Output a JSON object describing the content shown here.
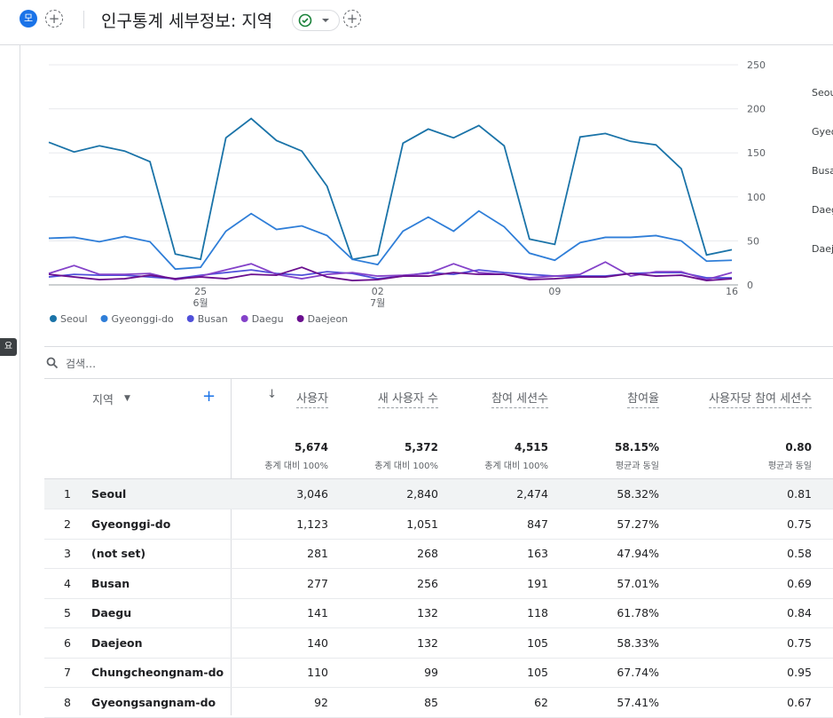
{
  "header": {
    "avatar": "모",
    "title": "인구통계 세부정보: 지역"
  },
  "side_badge": "요",
  "chart_data": {
    "type": "line",
    "categories": [
      null,
      null,
      null,
      null,
      null,
      null,
      "25",
      null,
      null,
      null,
      null,
      null,
      null,
      "02",
      null,
      null,
      null,
      null,
      null,
      null,
      "09",
      null,
      null,
      null,
      null,
      null,
      null,
      "16"
    ],
    "category_sublabels": [
      null,
      null,
      null,
      null,
      null,
      null,
      "6월",
      null,
      null,
      null,
      null,
      null,
      null,
      "7월",
      null,
      null,
      null,
      null,
      null,
      null,
      null,
      null,
      null,
      null,
      null,
      null,
      null,
      null
    ],
    "ylim": [
      0,
      250
    ],
    "yticks": [
      0,
      50,
      100,
      150,
      200,
      250
    ],
    "grid": true,
    "legend": "bottom",
    "series": [
      {
        "name": "Seoul",
        "color": "#1a73a8",
        "values": [
          162,
          151,
          158,
          152,
          140,
          35,
          29,
          167,
          189,
          164,
          152,
          112,
          29,
          34,
          161,
          177,
          167,
          181,
          158,
          52,
          46,
          168,
          172,
          163,
          159,
          132,
          34,
          40
        ]
      },
      {
        "name": "Gyeonggi-do",
        "color": "#2f7ed8",
        "values": [
          53,
          54,
          49,
          55,
          49,
          18,
          20,
          61,
          81,
          63,
          67,
          56,
          29,
          23,
          61,
          77,
          61,
          84,
          66,
          36,
          28,
          48,
          54,
          54,
          56,
          50,
          27,
          28
        ]
      },
      {
        "name": "Busan",
        "color": "#4f4fd9",
        "values": [
          9,
          12,
          11,
          11,
          9,
          7,
          11,
          14,
          17,
          13,
          11,
          15,
          13,
          7,
          10,
          14,
          12,
          17,
          14,
          12,
          10,
          10,
          10,
          13,
          14,
          14,
          8,
          8
        ]
      },
      {
        "name": "Daegu",
        "color": "#8442c9",
        "values": [
          13,
          22,
          12,
          12,
          13,
          6,
          10,
          17,
          24,
          12,
          7,
          12,
          14,
          10,
          11,
          13,
          24,
          14,
          12,
          8,
          10,
          12,
          26,
          10,
          15,
          15,
          6,
          14
        ]
      },
      {
        "name": "Daejeon",
        "color": "#6a0f8e",
        "values": [
          12,
          9,
          6,
          7,
          11,
          7,
          9,
          7,
          12,
          11,
          20,
          9,
          5,
          6,
          10,
          10,
          14,
          12,
          12,
          6,
          7,
          9,
          9,
          13,
          10,
          11,
          5,
          7
        ]
      }
    ]
  },
  "search_placeholder": "검색…",
  "table": {
    "columns": [
      "지역",
      "사용자",
      "새 사용자 수",
      "참여 세션수",
      "참여율",
      "사용자당 참여 세션수"
    ],
    "totals": [
      [
        "5,674",
        "총계 대비 100%"
      ],
      [
        "5,372",
        "총계 대비 100%"
      ],
      [
        "4,515",
        "총계 대비 100%"
      ],
      [
        "58.15%",
        "평균과 동일"
      ],
      [
        "0.80",
        "평균과 동일"
      ]
    ],
    "rows": [
      [
        "1",
        "Seoul",
        "3,046",
        "2,840",
        "2,474",
        "58.32%",
        "0.81"
      ],
      [
        "2",
        "Gyeonggi-do",
        "1,123",
        "1,051",
        "847",
        "57.27%",
        "0.75"
      ],
      [
        "3",
        "(not set)",
        "281",
        "268",
        "163",
        "47.94%",
        "0.58"
      ],
      [
        "4",
        "Busan",
        "277",
        "256",
        "191",
        "57.01%",
        "0.69"
      ],
      [
        "5",
        "Daegu",
        "141",
        "132",
        "118",
        "61.78%",
        "0.84"
      ],
      [
        "6",
        "Daejeon",
        "140",
        "132",
        "105",
        "58.33%",
        "0.75"
      ],
      [
        "7",
        "Chungcheongnam-do",
        "110",
        "99",
        "105",
        "67.74%",
        "0.95"
      ],
      [
        "8",
        "Gyeongsangnam-do",
        "92",
        "85",
        "62",
        "57.41%",
        "0.67"
      ]
    ]
  }
}
